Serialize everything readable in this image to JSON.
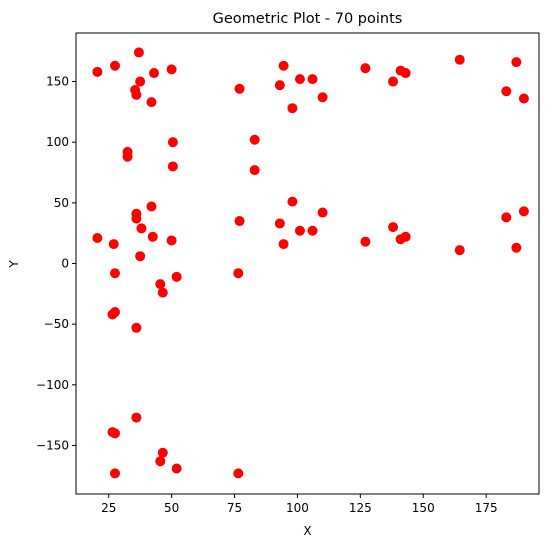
{
  "chart_data": {
    "type": "scatter",
    "title": "Geometric Plot - 70 points",
    "xlabel": "X",
    "ylabel": "Y",
    "xlim": [
      12,
      196
    ],
    "ylim": [
      -190,
      190
    ],
    "xticks": [
      25,
      50,
      75,
      100,
      125,
      150,
      175
    ],
    "yticks": [
      -150,
      -100,
      -50,
      0,
      50,
      100,
      150
    ],
    "grid": false,
    "legend": "none",
    "marker_color": "#ff0000",
    "series": [
      {
        "points": [
          [
            20.5,
            158
          ],
          [
            27.5,
            163
          ],
          [
            37,
            174
          ],
          [
            43,
            157
          ],
          [
            50,
            160
          ],
          [
            35.5,
            143
          ],
          [
            36,
            139
          ],
          [
            37.5,
            150
          ],
          [
            42,
            133
          ],
          [
            32.5,
            92
          ],
          [
            32.5,
            88
          ],
          [
            50.5,
            100
          ],
          [
            50.5,
            80
          ],
          [
            20.5,
            21
          ],
          [
            27,
            16
          ],
          [
            36,
            37
          ],
          [
            36,
            41
          ],
          [
            38,
            29
          ],
          [
            42,
            47
          ],
          [
            42.5,
            22
          ],
          [
            50,
            19
          ],
          [
            37.5,
            6
          ],
          [
            27.5,
            -8
          ],
          [
            52,
            -11
          ],
          [
            45.5,
            -17
          ],
          [
            46.5,
            -24
          ],
          [
            26.5,
            -42
          ],
          [
            27.5,
            -40
          ],
          [
            36,
            -53
          ],
          [
            36,
            -127
          ],
          [
            26.5,
            -139
          ],
          [
            27.5,
            -140
          ],
          [
            46.5,
            -156
          ],
          [
            45.5,
            -163
          ],
          [
            27.5,
            -173
          ],
          [
            52,
            -169
          ],
          [
            77,
            144
          ],
          [
            83,
            102
          ],
          [
            83,
            77
          ],
          [
            77,
            35
          ],
          [
            76.5,
            -8
          ],
          [
            76.5,
            -173
          ],
          [
            94.5,
            163
          ],
          [
            93,
            147
          ],
          [
            101,
            152
          ],
          [
            106,
            152
          ],
          [
            98,
            128
          ],
          [
            110,
            137
          ],
          [
            98,
            51
          ],
          [
            93,
            33
          ],
          [
            110,
            42
          ],
          [
            101,
            27
          ],
          [
            106,
            27
          ],
          [
            94.5,
            16
          ],
          [
            127,
            161
          ],
          [
            138,
            150
          ],
          [
            141,
            159
          ],
          [
            143,
            157
          ],
          [
            127,
            18
          ],
          [
            138,
            30
          ],
          [
            141,
            20
          ],
          [
            143,
            22
          ],
          [
            164.5,
            168
          ],
          [
            164.5,
            11
          ],
          [
            187,
            166
          ],
          [
            183,
            142
          ],
          [
            190,
            136
          ],
          [
            183,
            38
          ],
          [
            190,
            43
          ],
          [
            187,
            13
          ]
        ]
      }
    ]
  }
}
